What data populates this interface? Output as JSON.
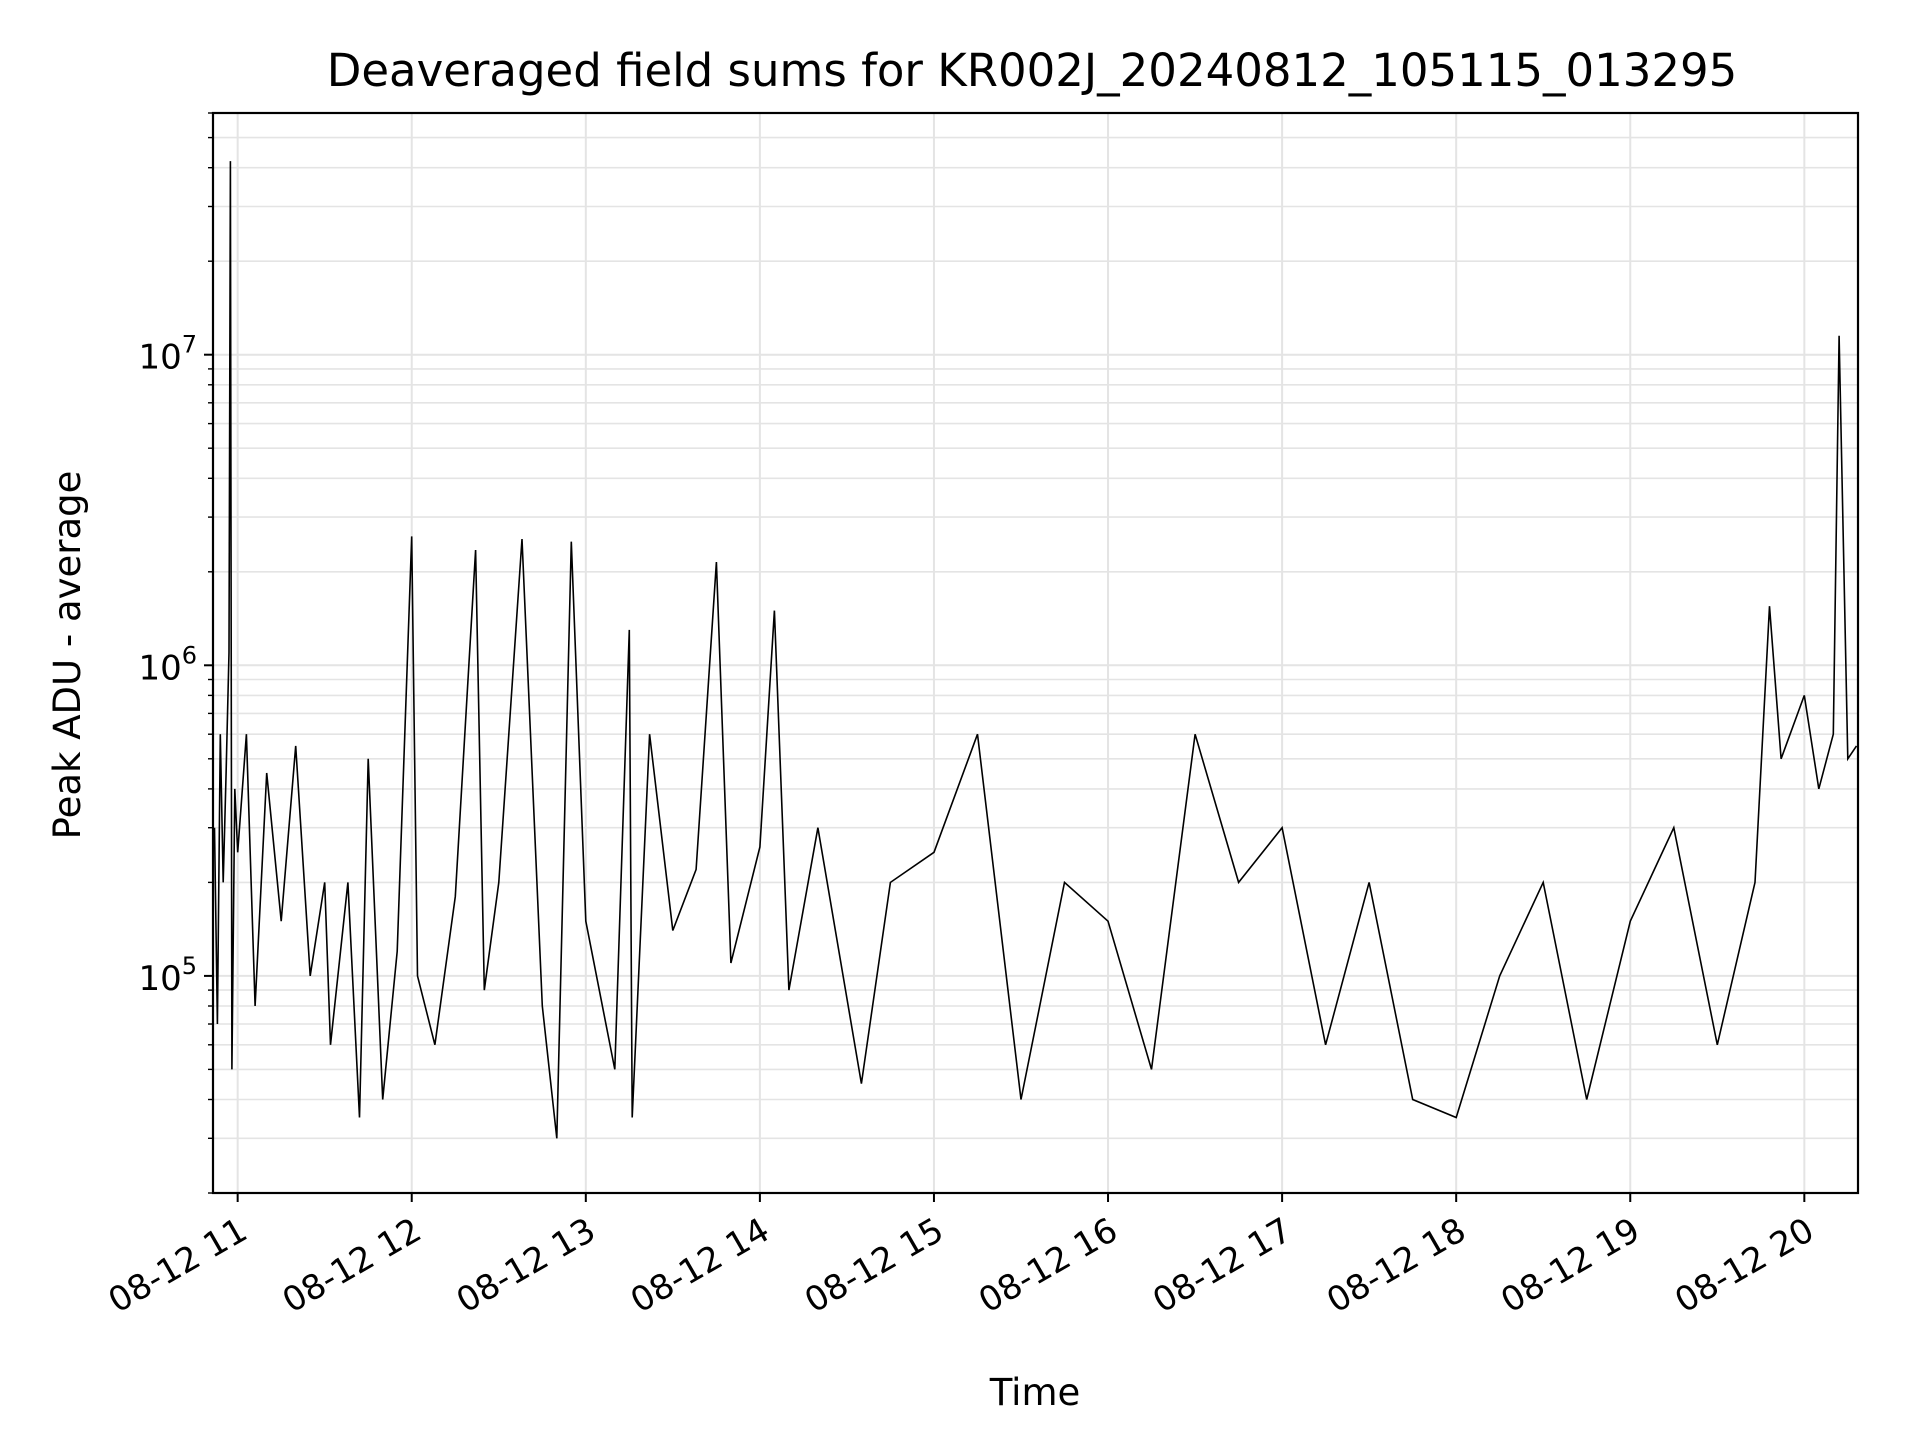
{
  "chart_data": {
    "type": "line",
    "title": "Deaveraged field sums for KR002J_20240812_105115_013295",
    "xlabel": "Time",
    "ylabel": "Peak ADU - average",
    "yscale": "log",
    "ylim": [
      20000,
      60000000
    ],
    "xlim": [
      "2024-08-12 10:51:30",
      "2024-08-12 20:18:30"
    ],
    "x_ticks": [
      {
        "value": "2024-08-12 11:00",
        "label": "08-12 11"
      },
      {
        "value": "2024-08-12 12:00",
        "label": "08-12 12"
      },
      {
        "value": "2024-08-12 13:00",
        "label": "08-12 13"
      },
      {
        "value": "2024-08-12 14:00",
        "label": "08-12 14"
      },
      {
        "value": "2024-08-12 15:00",
        "label": "08-12 15"
      },
      {
        "value": "2024-08-12 16:00",
        "label": "08-12 16"
      },
      {
        "value": "2024-08-12 17:00",
        "label": "08-12 17"
      },
      {
        "value": "2024-08-12 18:00",
        "label": "08-12 18"
      },
      {
        "value": "2024-08-12 19:00",
        "label": "08-12 19"
      },
      {
        "value": "2024-08-12 20:00",
        "label": "08-12 20"
      }
    ],
    "y_ticks": [
      {
        "value": 100000,
        "base": "10",
        "exp": "5"
      },
      {
        "value": 1000000,
        "base": "10",
        "exp": "6"
      },
      {
        "value": 10000000,
        "base": "10",
        "exp": "7"
      }
    ],
    "grid": true,
    "line_color": "#000000",
    "series": [
      {
        "points": [
          [
            "2024-08-12 10:52",
            300000
          ],
          [
            "2024-08-12 10:53",
            70000
          ],
          [
            "2024-08-12 10:54",
            600000
          ],
          [
            "2024-08-12 10:55",
            200000
          ],
          [
            "2024-08-12 10:56",
            450000
          ],
          [
            "2024-08-12 10:57",
            1100000
          ],
          [
            "2024-08-12 10:57:30",
            42000000
          ],
          [
            "2024-08-12 10:58",
            50000
          ],
          [
            "2024-08-12 10:59",
            400000
          ],
          [
            "2024-08-12 11:00",
            250000
          ],
          [
            "2024-08-12 11:03",
            600000
          ],
          [
            "2024-08-12 11:06",
            80000
          ],
          [
            "2024-08-12 11:10",
            450000
          ],
          [
            "2024-08-12 11:15",
            150000
          ],
          [
            "2024-08-12 11:20",
            550000
          ],
          [
            "2024-08-12 11:25",
            100000
          ],
          [
            "2024-08-12 11:30",
            200000
          ],
          [
            "2024-08-12 11:32",
            60000
          ],
          [
            "2024-08-12 11:38",
            200000
          ],
          [
            "2024-08-12 11:42",
            35000
          ],
          [
            "2024-08-12 11:45",
            500000
          ],
          [
            "2024-08-12 11:50",
            40000
          ],
          [
            "2024-08-12 11:55",
            120000
          ],
          [
            "2024-08-12 12:00",
            2600000
          ],
          [
            "2024-08-12 12:02",
            100000
          ],
          [
            "2024-08-12 12:08",
            60000
          ],
          [
            "2024-08-12 12:15",
            180000
          ],
          [
            "2024-08-12 12:22",
            2350000
          ],
          [
            "2024-08-12 12:25",
            90000
          ],
          [
            "2024-08-12 12:30",
            200000
          ],
          [
            "2024-08-12 12:38",
            2550000
          ],
          [
            "2024-08-12 12:45",
            80000
          ],
          [
            "2024-08-12 12:50",
            30000
          ],
          [
            "2024-08-12 12:55",
            2500000
          ],
          [
            "2024-08-12 13:00",
            150000
          ],
          [
            "2024-08-12 13:10",
            50000
          ],
          [
            "2024-08-12 13:15",
            1300000
          ],
          [
            "2024-08-12 13:16",
            35000
          ],
          [
            "2024-08-12 13:22",
            600000
          ],
          [
            "2024-08-12 13:30",
            140000
          ],
          [
            "2024-08-12 13:38",
            220000
          ],
          [
            "2024-08-12 13:45",
            2150000
          ],
          [
            "2024-08-12 13:50",
            110000
          ],
          [
            "2024-08-12 14:00",
            260000
          ],
          [
            "2024-08-12 14:05",
            1500000
          ],
          [
            "2024-08-12 14:10",
            90000
          ],
          [
            "2024-08-12 14:20",
            300000
          ],
          [
            "2024-08-12 14:35",
            45000
          ],
          [
            "2024-08-12 14:45",
            200000
          ],
          [
            "2024-08-12 15:00",
            250000
          ],
          [
            "2024-08-12 15:15",
            600000
          ],
          [
            "2024-08-12 15:30",
            40000
          ],
          [
            "2024-08-12 15:45",
            200000
          ],
          [
            "2024-08-12 16:00",
            150000
          ],
          [
            "2024-08-12 16:15",
            50000
          ],
          [
            "2024-08-12 16:30",
            600000
          ],
          [
            "2024-08-12 16:45",
            200000
          ],
          [
            "2024-08-12 17:00",
            300000
          ],
          [
            "2024-08-12 17:15",
            60000
          ],
          [
            "2024-08-12 17:30",
            200000
          ],
          [
            "2024-08-12 17:45",
            40000
          ],
          [
            "2024-08-12 18:00",
            35000
          ],
          [
            "2024-08-12 18:15",
            100000
          ],
          [
            "2024-08-12 18:30",
            200000
          ],
          [
            "2024-08-12 18:45",
            40000
          ],
          [
            "2024-08-12 19:00",
            150000
          ],
          [
            "2024-08-12 19:15",
            300000
          ],
          [
            "2024-08-12 19:30",
            60000
          ],
          [
            "2024-08-12 19:43",
            200000
          ],
          [
            "2024-08-12 19:48",
            1550000
          ],
          [
            "2024-08-12 19:52",
            500000
          ],
          [
            "2024-08-12 20:00",
            800000
          ],
          [
            "2024-08-12 20:05",
            400000
          ],
          [
            "2024-08-12 20:10",
            600000
          ],
          [
            "2024-08-12 20:12",
            11500000
          ],
          [
            "2024-08-12 20:15",
            500000
          ],
          [
            "2024-08-12 20:18",
            550000
          ]
        ]
      }
    ]
  }
}
